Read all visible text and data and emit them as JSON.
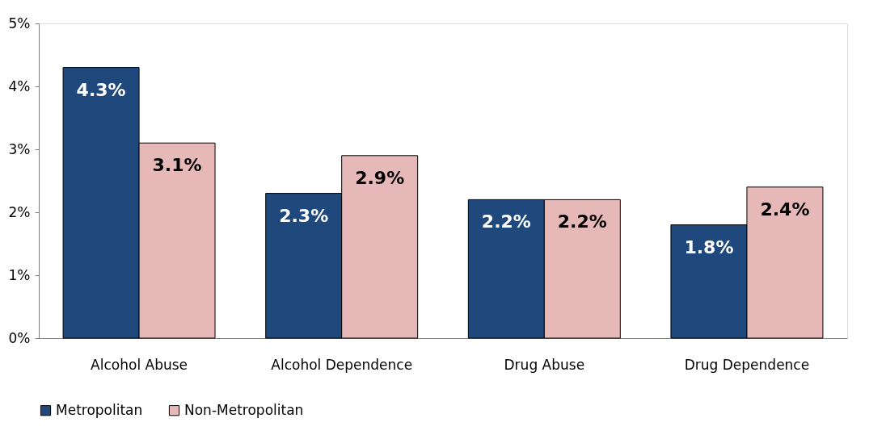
{
  "chart_data": {
    "type": "bar",
    "categories": [
      "Alcohol Abuse",
      "Alcohol Dependence",
      "Drug Abuse",
      "Drug Dependence"
    ],
    "series": [
      {
        "name": "Metropolitan",
        "color": "#1f497d",
        "values": [
          4.3,
          2.3,
          2.2,
          1.8
        ],
        "value_labels": [
          "4.3%",
          "2.3%",
          "2.2%",
          "1.8%"
        ]
      },
      {
        "name": "Non-Metropolitan",
        "color": "#e6b9b8",
        "values": [
          3.1,
          2.9,
          2.2,
          2.4
        ],
        "value_labels": [
          "3.1%",
          "2.9%",
          "2.2%",
          "2.4%"
        ]
      }
    ],
    "ylim": [
      0,
      5
    ],
    "yticks": [
      {
        "value": 0,
        "label": "0%"
      },
      {
        "value": 1,
        "label": "1%"
      },
      {
        "value": 2,
        "label": "2%"
      },
      {
        "value": 3,
        "label": "3%"
      },
      {
        "value": 4,
        "label": "4%"
      },
      {
        "value": 5,
        "label": "5%"
      }
    ],
    "grid": false,
    "legend": "bottom"
  }
}
